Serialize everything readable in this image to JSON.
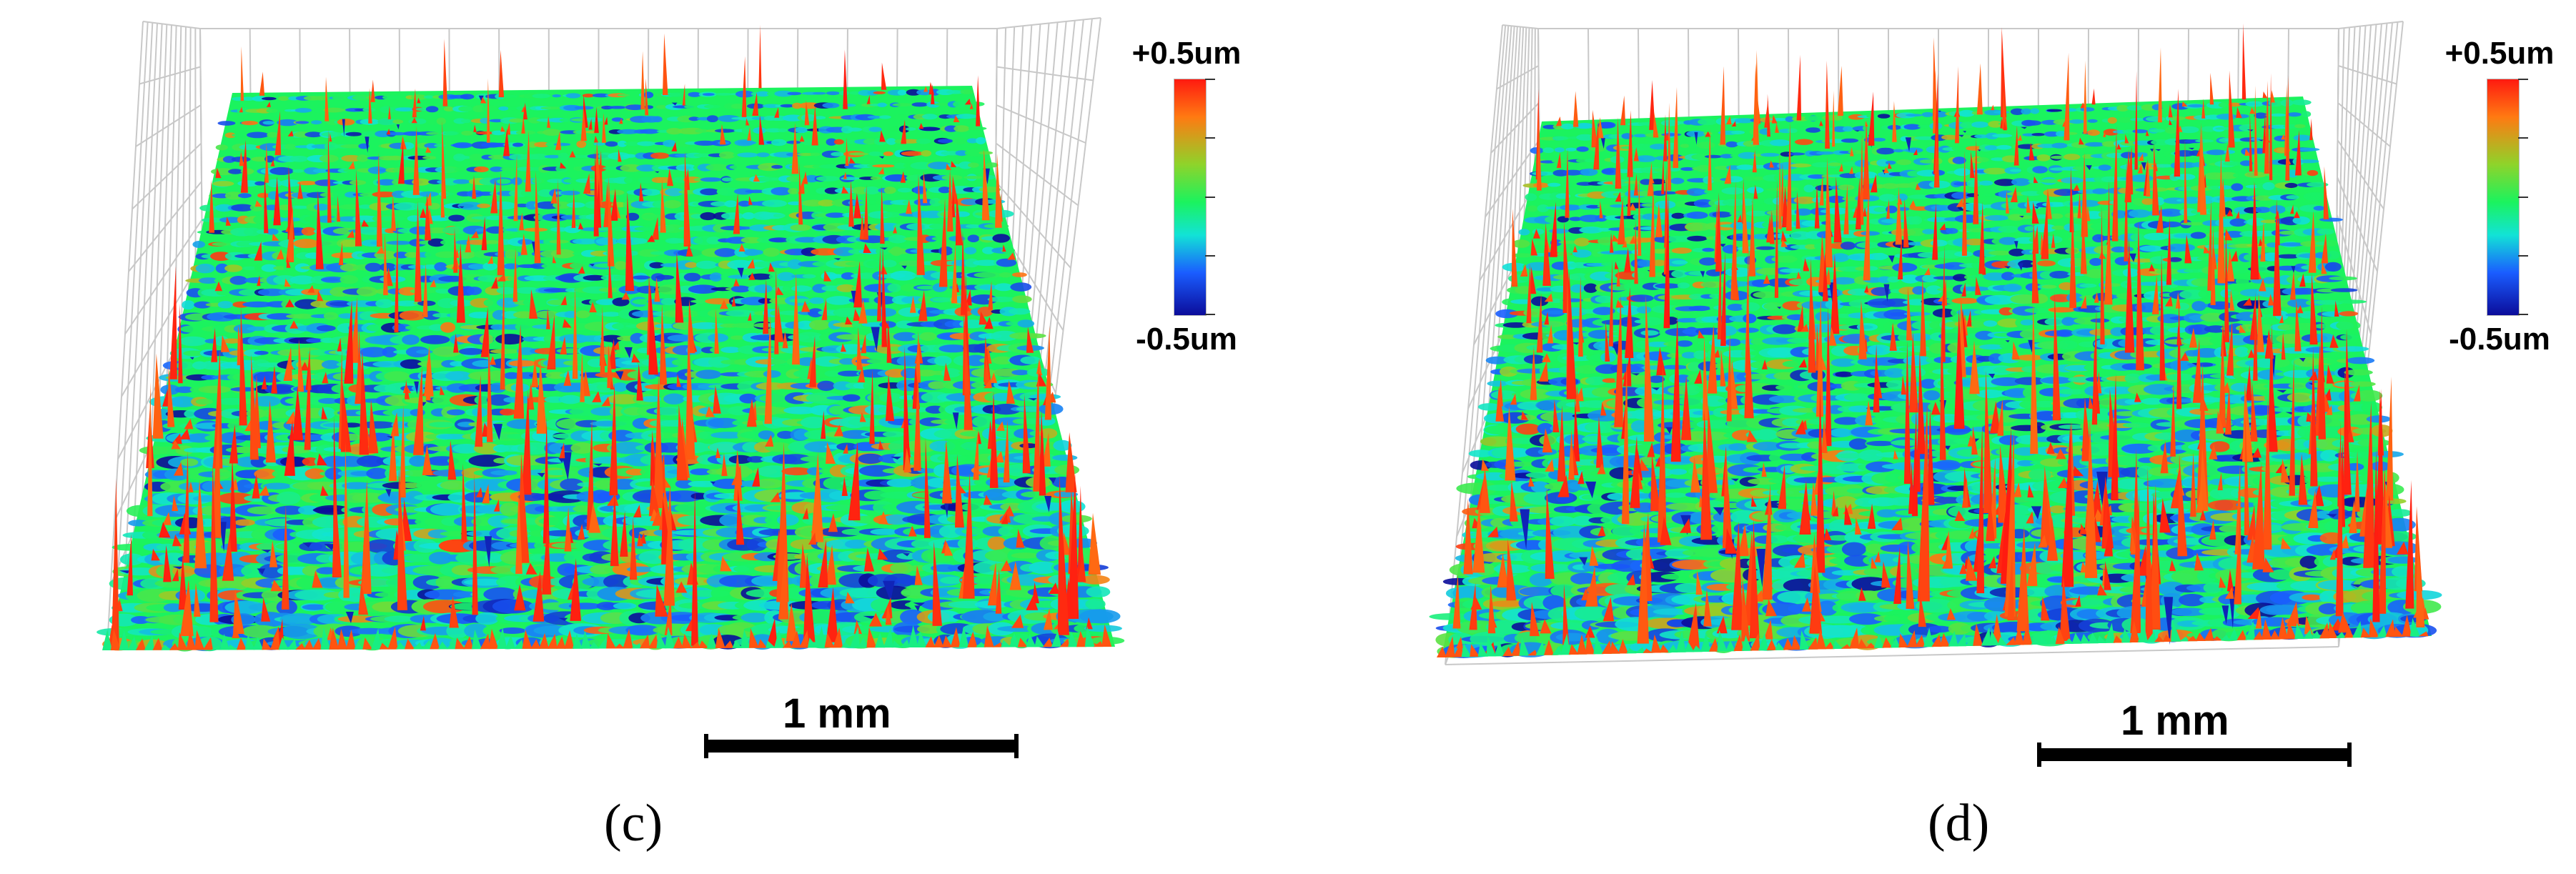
{
  "panels": [
    {
      "id": "c",
      "label": "(c)",
      "colorbar": {
        "max_label": "+0.5um",
        "min_label": "-0.5um"
      },
      "scale_bar": {
        "label": "1 mm"
      }
    },
    {
      "id": "d",
      "label": "(d)",
      "colorbar": {
        "max_label": "+0.5um",
        "min_label": "-0.5um"
      },
      "scale_bar": {
        "label": "1 mm"
      }
    }
  ],
  "colormap": [
    "#0b0c9a",
    "#1a5dff",
    "#12e3d6",
    "#1bf35e",
    "#8fd32a",
    "#ff7a12",
    "#ff1a10"
  ],
  "grid_color": "#c8c8c8"
}
